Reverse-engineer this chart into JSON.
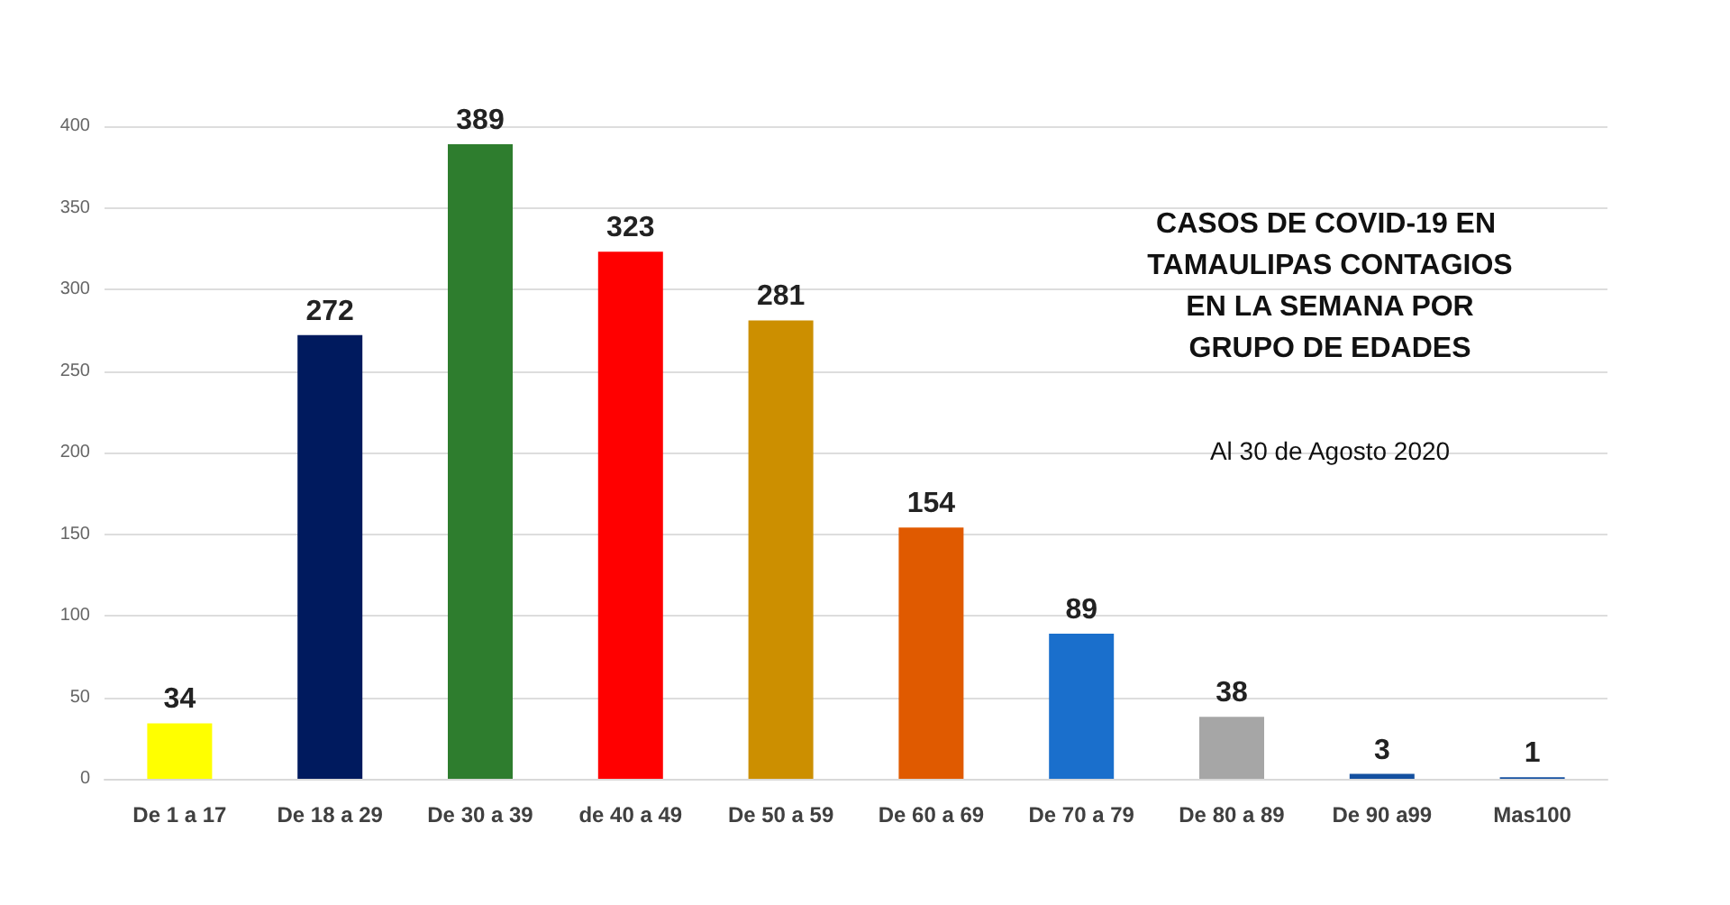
{
  "chart_data": {
    "type": "bar",
    "title": "CASOS DE COVID-19 EN TAMAULIPAS CONTAGIOS EN LA SEMANA POR GRUPO DE EDADES",
    "subtitle": "Al 30 de Agosto 2020",
    "categories": [
      "De 1 a 17",
      "De 18 a 29",
      "De 30 a 39",
      "de 40 a 49",
      "De 50 a 59",
      "De 60 a 69",
      "De 70 a 79",
      "De 80 a 89",
      "De 90 a99",
      "Mas100"
    ],
    "values": [
      34,
      272,
      389,
      323,
      281,
      154,
      89,
      38,
      3,
      1
    ],
    "colors": [
      "#ffff00",
      "#001a5e",
      "#2e7d2e",
      "#ff0000",
      "#cc8f00",
      "#e05a00",
      "#1a6fcc",
      "#a6a6a6",
      "#1450a0",
      "#1450a0"
    ],
    "ylim": [
      0,
      400
    ],
    "yticks": [
      0,
      50,
      100,
      150,
      200,
      250,
      300,
      350,
      400
    ],
    "grid": "y",
    "data_labels": true
  }
}
